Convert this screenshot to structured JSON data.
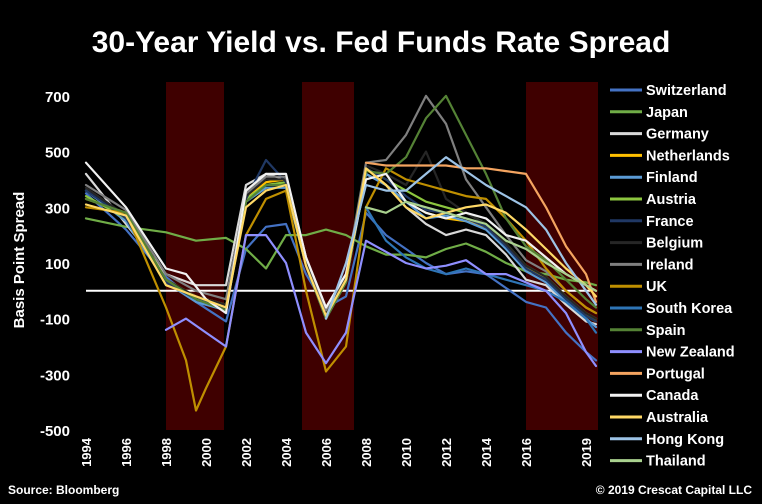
{
  "chart_data": {
    "type": "line",
    "title": "30-Year Yield vs. Fed Funds Rate Spread",
    "ylabel": "Basis Point Spread",
    "xlabel": "",
    "source": "Source: Bloomberg",
    "copyright": "© 2019 Crescat Capital LLC",
    "ylim": [
      -500,
      750
    ],
    "xlim": [
      1994,
      2019.6
    ],
    "yticks": [
      700,
      500,
      300,
      100,
      -100,
      -300,
      -500
    ],
    "ytick_labels": [
      "700",
      "500",
      "300",
      "100",
      "-100",
      "-300",
      "-500"
    ],
    "xticks": [
      1994,
      1996,
      1998,
      2000,
      2002,
      2004,
      2006,
      2008,
      2010,
      2012,
      2014,
      2016,
      2019
    ],
    "xtick_labels": [
      "1994",
      "1996",
      "1998",
      "2000",
      "2002",
      "2004",
      "2006",
      "2008",
      "2010",
      "2012",
      "2014",
      "2016",
      "2019"
    ],
    "zero_line": 0,
    "grid": false,
    "legend_position": "right",
    "shaded_regions": [
      [
        1998.0,
        2000.9
      ],
      [
        2004.8,
        2007.4
      ],
      [
        2016.0,
        2019.6
      ]
    ],
    "shade_color": "#3f0000",
    "series": [
      {
        "name": "Switzerland",
        "color": "#4472c4",
        "x": [
          1994,
          1996,
          1998,
          1999.5,
          2001,
          2002,
          2003,
          2004,
          2005,
          2006,
          2007,
          2008,
          2009,
          2010,
          2011,
          2012,
          2013,
          2014,
          2015,
          2016,
          2017,
          2018,
          2019,
          2019.5
        ],
        "y": [
          350,
          220,
          50,
          -40,
          -110,
          150,
          230,
          240,
          60,
          -60,
          -20,
          280,
          200,
          150,
          100,
          60,
          70,
          60,
          10,
          -40,
          -60,
          -150,
          -220,
          -250
        ]
      },
      {
        "name": "Japan",
        "color": "#70ad47",
        "x": [
          1994,
          1996,
          1998,
          1999.5,
          2001,
          2002,
          2003,
          2004,
          2005,
          2006,
          2007,
          2008,
          2009,
          2010,
          2011,
          2012,
          2013,
          2014,
          2015,
          2016,
          2017,
          2018,
          2019,
          2019.5
        ],
        "y": [
          260,
          230,
          210,
          180,
          190,
          150,
          80,
          200,
          200,
          220,
          200,
          160,
          130,
          130,
          120,
          150,
          170,
          140,
          100,
          70,
          60,
          40,
          30,
          20
        ]
      },
      {
        "name": "Germany",
        "color": "#d9d9d9",
        "x": [
          1994,
          1996,
          1998,
          1999.5,
          2001,
          2002,
          2003,
          2004,
          2005,
          2006,
          2007,
          2008,
          2009,
          2010,
          2011,
          2012,
          2013,
          2014,
          2015,
          2016,
          2017,
          2018,
          2019,
          2019.5
        ],
        "y": [
          420,
          240,
          60,
          20,
          20,
          380,
          420,
          400,
          120,
          -60,
          60,
          420,
          380,
          300,
          240,
          200,
          220,
          200,
          130,
          40,
          20,
          -50,
          -110,
          -120
        ]
      },
      {
        "name": "Netherlands",
        "color": "#ffc000",
        "x": [
          1994,
          1996,
          1998,
          1999.5,
          2001,
          2002,
          2003,
          2004,
          2005,
          2006,
          2007,
          2008,
          2009,
          2010,
          2011,
          2012,
          2013,
          2014,
          2015,
          2016,
          2017,
          2018,
          2019,
          2019.5
        ],
        "y": [
          330,
          280,
          40,
          -20,
          -50,
          330,
          390,
          400,
          100,
          -80,
          40,
          440,
          380,
          320,
          280,
          260,
          250,
          230,
          160,
          80,
          50,
          -20,
          -80,
          -100
        ]
      },
      {
        "name": "Finland",
        "color": "#5b9bd5",
        "x": [
          1994,
          1996,
          1998,
          1999.5,
          2001,
          2002,
          2003,
          2004,
          2005,
          2006,
          2007,
          2008,
          2009,
          2010,
          2011,
          2012,
          2013,
          2014,
          2015,
          2016,
          2017,
          2018,
          2019,
          2019.5
        ],
        "y": [
          360,
          250,
          30,
          -40,
          -70,
          320,
          370,
          370,
          90,
          -100,
          30,
          420,
          380,
          320,
          260,
          270,
          250,
          220,
          150,
          70,
          30,
          -40,
          -100,
          -130
        ]
      },
      {
        "name": "Austria",
        "color": "#8cc63f",
        "x": [
          1994,
          1996,
          1998,
          1999.5,
          2001,
          2002,
          2003,
          2004,
          2005,
          2006,
          2007,
          2008,
          2009,
          2010,
          2011,
          2012,
          2013,
          2014,
          2015,
          2016,
          2017,
          2018,
          2019,
          2019.5
        ],
        "y": [
          340,
          260,
          40,
          -30,
          -60,
          330,
          380,
          390,
          100,
          -90,
          40,
          440,
          400,
          360,
          320,
          300,
          280,
          240,
          170,
          90,
          50,
          -20,
          -90,
          -110
        ]
      },
      {
        "name": "France",
        "color": "#203864",
        "x": [
          1994,
          1996,
          1998,
          1999.5,
          2001,
          2002,
          2003,
          2004,
          2005,
          2006,
          2007,
          2008,
          2009,
          2010,
          2011,
          2012,
          2013,
          2014,
          2015,
          2016,
          2017,
          2018,
          2019,
          2019.5
        ],
        "y": [
          360,
          260,
          30,
          -30,
          -60,
          330,
          470,
          390,
          100,
          -90,
          40,
          440,
          400,
          340,
          290,
          280,
          260,
          230,
          160,
          80,
          40,
          -30,
          -90,
          -110
        ]
      },
      {
        "name": "Belgium",
        "color": "#262626",
        "x": [
          1994,
          1996,
          1998,
          1999.5,
          2001,
          2002,
          2003,
          2004,
          2005,
          2006,
          2007,
          2008,
          2009,
          2010,
          2011,
          2012,
          2013,
          2014,
          2015,
          2016,
          2017,
          2018,
          2019,
          2019.5
        ],
        "y": [
          370,
          270,
          40,
          -20,
          -50,
          340,
          400,
          400,
          110,
          -80,
          50,
          450,
          420,
          380,
          500,
          330,
          280,
          240,
          170,
          90,
          50,
          -20,
          -80,
          -100
        ]
      },
      {
        "name": "Ireland",
        "color": "#7f7f7f",
        "x": [
          1994,
          1996,
          1998,
          1999.5,
          2001,
          2002,
          2003,
          2004,
          2005,
          2006,
          2007,
          2008,
          2009,
          2010,
          2011,
          2012,
          2013,
          2014,
          2015,
          2016,
          2017,
          2018,
          2019,
          2019.5
        ],
        "y": [
          380,
          290,
          60,
          0,
          -30,
          350,
          410,
          410,
          120,
          -70,
          60,
          460,
          470,
          560,
          700,
          600,
          400,
          300,
          200,
          110,
          70,
          0,
          -60,
          -80
        ]
      },
      {
        "name": "UK",
        "color": "#bf8f00",
        "x": [
          1994,
          1996,
          1998,
          1999,
          1999.5,
          2000,
          2001,
          2002,
          2003,
          2004,
          2005,
          2006,
          2007,
          2008,
          2009,
          2010,
          2011,
          2012,
          2013,
          2014,
          2015,
          2016,
          2017,
          2018,
          2019,
          2019.5
        ],
        "y": [
          300,
          280,
          -60,
          -250,
          -430,
          -350,
          -200,
          200,
          330,
          360,
          0,
          -290,
          -200,
          300,
          440,
          400,
          380,
          360,
          340,
          330,
          260,
          180,
          80,
          0,
          -60,
          -80
        ]
      },
      {
        "name": "South Korea",
        "color": "#2e75b6",
        "x": [
          2008,
          2009,
          2010,
          2011,
          2012,
          2013,
          2014,
          2015,
          2016,
          2017,
          2018,
          2019,
          2019.5
        ],
        "y": [
          300,
          180,
          120,
          80,
          60,
          80,
          60,
          40,
          20,
          0,
          -40,
          -100,
          -150
        ]
      },
      {
        "name": "Spain",
        "color": "#548235",
        "x": [
          1994,
          1996,
          1998,
          1999.5,
          2001,
          2002,
          2003,
          2004,
          2005,
          2006,
          2007,
          2008,
          2009,
          2010,
          2011,
          2012,
          2013,
          2014,
          2015,
          2016,
          2017,
          2018,
          2019,
          2019.5
        ],
        "y": [
          330,
          280,
          40,
          -30,
          -70,
          320,
          380,
          380,
          90,
          -100,
          30,
          430,
          420,
          480,
          620,
          700,
          560,
          420,
          260,
          160,
          110,
          40,
          -30,
          -60
        ]
      },
      {
        "name": "New Zealand",
        "color": "#8f8fff",
        "x": [
          1998,
          1999,
          2000,
          2001,
          2002,
          2003,
          2004,
          2005,
          2006,
          2007,
          2008,
          2009,
          2010,
          2011,
          2012,
          2013,
          2014,
          2015,
          2016,
          2017,
          2018,
          2019,
          2019.5
        ],
        "y": [
          -140,
          -100,
          -150,
          -200,
          200,
          200,
          100,
          -150,
          -260,
          -150,
          180,
          140,
          100,
          80,
          90,
          110,
          60,
          60,
          30,
          0,
          -80,
          -220,
          -270
        ]
      },
      {
        "name": "Portugal",
        "color": "#f4a460",
        "x": [
          2008,
          2009,
          2010,
          2011,
          2012,
          2013,
          2014,
          2015,
          2016,
          2017,
          2018,
          2019,
          2019.5
        ],
        "y": [
          460,
          450,
          450,
          450,
          450,
          440,
          440,
          430,
          420,
          300,
          160,
          60,
          -40
        ]
      },
      {
        "name": "Canada",
        "color": "#f2f2f2",
        "x": [
          1994,
          1996,
          1998,
          1999,
          2000,
          2001,
          2002,
          2003,
          2004,
          2005,
          2006,
          2007,
          2008,
          2009,
          2010,
          2011,
          2012,
          2013,
          2014,
          2015,
          2016,
          2017,
          2018,
          2019,
          2019.5
        ],
        "y": [
          460,
          300,
          80,
          60,
          -30,
          -80,
          360,
          420,
          420,
          120,
          -60,
          60,
          400,
          420,
          320,
          280,
          260,
          280,
          260,
          200,
          180,
          120,
          60,
          20,
          0
        ]
      },
      {
        "name": "Australia",
        "color": "#ffd966",
        "x": [
          1994,
          1996,
          1998,
          1999.5,
          2001,
          2002,
          2003,
          2004,
          2005,
          2006,
          2007,
          2008,
          2009,
          2010,
          2011,
          2012,
          2013,
          2014,
          2015,
          2016,
          2017,
          2018,
          2019,
          2019.5
        ],
        "y": [
          310,
          270,
          20,
          -20,
          -60,
          300,
          360,
          380,
          90,
          -90,
          40,
          440,
          380,
          300,
          260,
          280,
          300,
          310,
          280,
          220,
          150,
          80,
          20,
          -20
        ]
      },
      {
        "name": "Hong Kong",
        "color": "#9dc3e6",
        "x": [
          2006,
          2007,
          2008,
          2009,
          2010,
          2011,
          2012,
          2013,
          2014,
          2015,
          2016,
          2017,
          2018,
          2019,
          2019.5
        ],
        "y": [
          -100,
          100,
          380,
          360,
          360,
          420,
          480,
          430,
          380,
          340,
          300,
          220,
          100,
          0,
          -50
        ]
      },
      {
        "name": "Thailand",
        "color": "#a9d18e",
        "x": [
          2008,
          2009,
          2010,
          2011,
          2012,
          2013,
          2014,
          2015,
          2016,
          2017,
          2018,
          2019,
          2019.5
        ],
        "y": [
          300,
          280,
          320,
          300,
          280,
          260,
          240,
          180,
          150,
          100,
          60,
          20,
          0
        ]
      }
    ]
  }
}
